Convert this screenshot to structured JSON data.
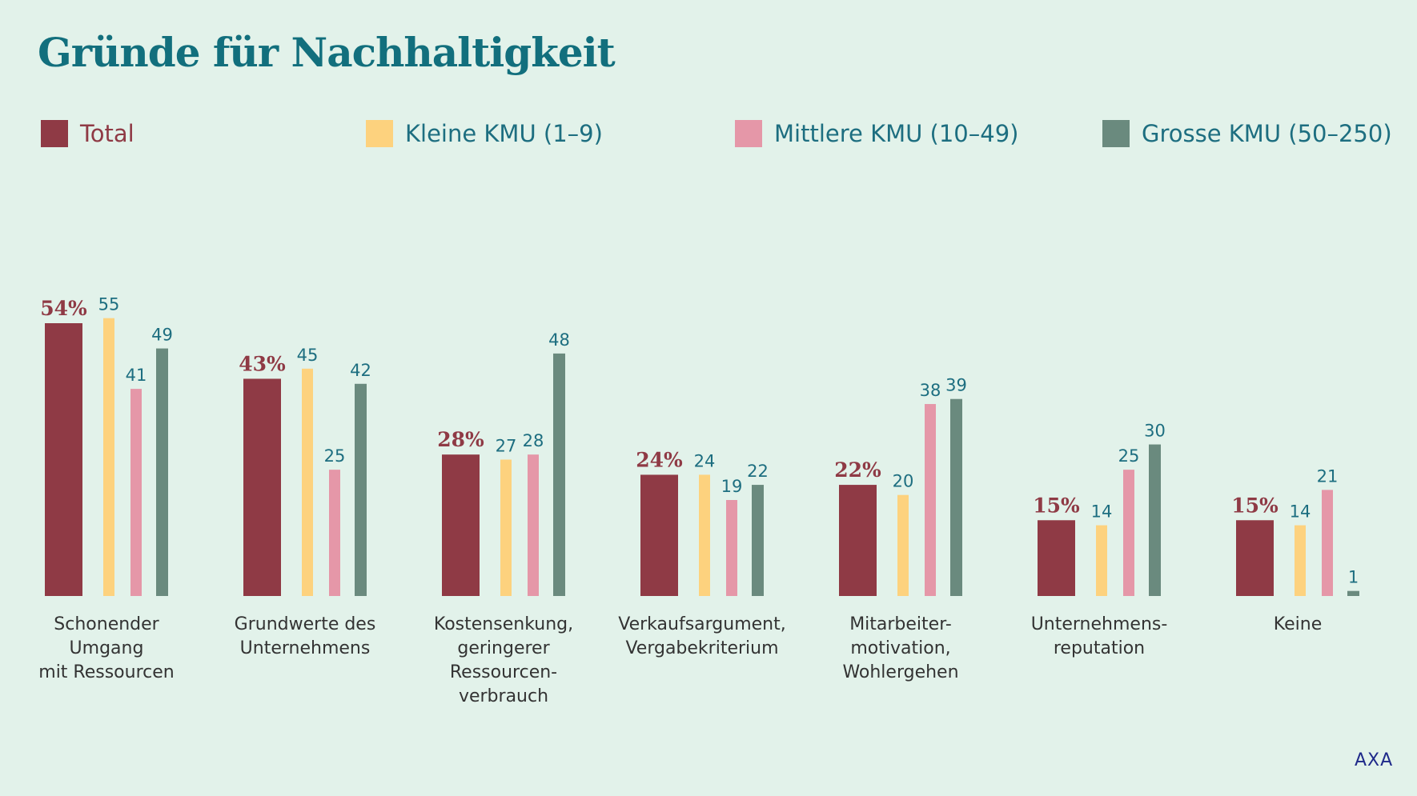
{
  "chart_data": {
    "type": "bar",
    "title": "Gründe für Nachhaltigkeit",
    "categories": [
      [
        "Schonender",
        "Umgang",
        "mit Ressourcen"
      ],
      [
        "Grundwerte des",
        "Unternehmens"
      ],
      [
        "Kostensenkung,",
        "geringerer",
        "Ressourcen-",
        "verbrauch"
      ],
      [
        "Verkaufsargument,",
        "Vergabekriterium"
      ],
      [
        "Mitarbeiter-",
        "motivation,",
        "Wohlergehen"
      ],
      [
        "Unternehmens-",
        "reputation"
      ],
      [
        "Keine"
      ]
    ],
    "series": [
      {
        "name": "Total",
        "color": "#8f3a45",
        "values": [
          54,
          43,
          28,
          24,
          22,
          15,
          15
        ],
        "label_suffix": "%"
      },
      {
        "name": "Kleine KMU (1–9)",
        "color": "#fdd27e",
        "values": [
          55,
          45,
          27,
          24,
          20,
          14,
          14
        ],
        "label_suffix": ""
      },
      {
        "name": "Mittlere KMU (10–49)",
        "color": "#e597a8",
        "values": [
          41,
          25,
          28,
          19,
          38,
          25,
          21
        ],
        "label_suffix": ""
      },
      {
        "name": "Grosse KMU (50–250)",
        "color": "#6a8a7e",
        "values": [
          49,
          42,
          48,
          22,
          39,
          30,
          1
        ],
        "label_suffix": ""
      }
    ],
    "ylim": [
      0,
      55
    ],
    "grid": false,
    "legend_position": "top"
  },
  "source": "AXA"
}
